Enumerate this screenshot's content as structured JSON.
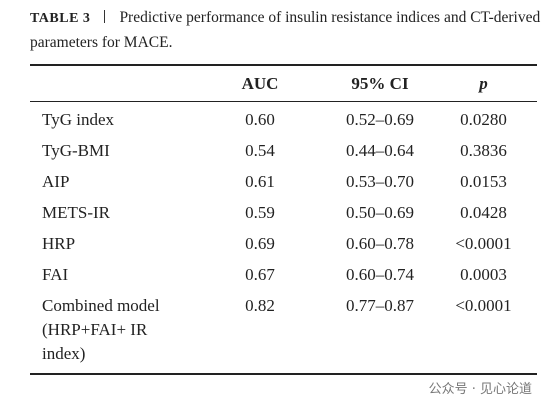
{
  "caption": {
    "label": "TABLE 3",
    "text": "Predictive performance of insulin resistance indices and CT-derived parameters for MACE."
  },
  "table": {
    "header": [
      "AUC",
      "95% CI",
      "p"
    ],
    "rows": [
      [
        "TyG index",
        "0.60",
        "0.52–0.69",
        "0.0280"
      ],
      [
        "TyG-BMI",
        "0.54",
        "0.44–0.64",
        "0.3836"
      ],
      [
        "AIP",
        "0.61",
        "0.53–0.70",
        "0.0153"
      ],
      [
        "METS-IR",
        "0.59",
        "0.50–0.69",
        "0.0428"
      ],
      [
        "HRP",
        "0.69",
        "0.60–0.78",
        "<0.0001"
      ],
      [
        "FAI",
        "0.67",
        "0.60–0.74",
        "0.0003"
      ],
      [
        "Combined model (HRP+FAI+ IR index)",
        "0.82",
        "0.77–0.87",
        "<0.0001"
      ]
    ]
  },
  "watermark": "公众号 · 见心论道"
}
